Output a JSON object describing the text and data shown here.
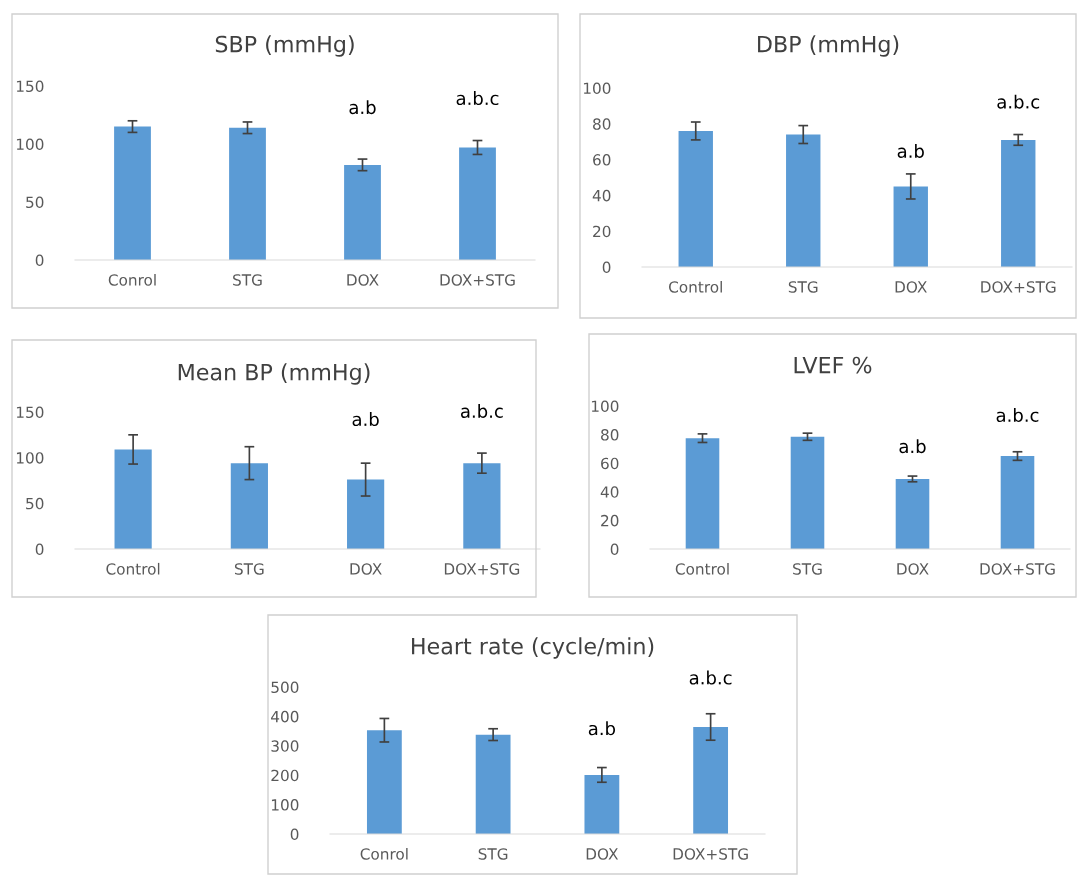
{
  "chart_data": [
    {
      "type": "bar",
      "title": "SBP (mmHg)",
      "categories": [
        "Conrol",
        "STG",
        "DOX",
        "DOX+STG"
      ],
      "values": [
        115,
        114,
        82,
        97
      ],
      "errors": [
        5,
        5,
        5,
        6
      ],
      "color": "#5b9bd5",
      "ylim": [
        0,
        150
      ],
      "yticks": [
        0,
        50,
        100,
        150
      ],
      "annotations": [
        {
          "text": "a.b",
          "x": "DOX",
          "y": 82
        },
        {
          "text": "a.b.c",
          "x": "DOX+STG",
          "y": 97
        }
      ]
    },
    {
      "type": "bar",
      "title": "DBP (mmHg)",
      "categories": [
        "Control",
        "STG",
        "DOX",
        "DOX+STG"
      ],
      "values": [
        76,
        74,
        45,
        71
      ],
      "errors": [
        5,
        5,
        7,
        3
      ],
      "color": "#5b9bd5",
      "ylim": [
        0,
        100
      ],
      "yticks": [
        0,
        20,
        40,
        60,
        80,
        100
      ],
      "annotations": [
        {
          "text": "a.b",
          "x": "DOX",
          "y": 45
        },
        {
          "text": "a.b.c",
          "x": "DOX+STG",
          "y": 71
        }
      ]
    },
    {
      "type": "bar",
      "title": "Mean BP (mmHg)",
      "categories": [
        "Control",
        "STG",
        "DOX",
        "DOX+STG"
      ],
      "values": [
        109,
        94,
        76,
        94
      ],
      "errors": [
        16,
        18,
        18,
        11
      ],
      "color": "#5b9bd5",
      "ylim": [
        0,
        150
      ],
      "yticks": [
        0,
        50,
        100,
        150
      ],
      "annotations": [
        {
          "text": "a.b",
          "x": "DOX",
          "y": 76
        },
        {
          "text": "a.b.c",
          "x": "DOX+STG",
          "y": 94
        }
      ]
    },
    {
      "type": "bar",
      "title": "LVEF %",
      "categories": [
        "Control",
        "STG",
        "DOX",
        "DOX+STG"
      ],
      "values": [
        77.5,
        78.5,
        49,
        65
      ],
      "errors": [
        3,
        2.5,
        2,
        3
      ],
      "color": "#5b9bd5",
      "ylim": [
        0,
        100
      ],
      "yticks": [
        0,
        20,
        40,
        60,
        80,
        100
      ],
      "annotations": [
        {
          "text": "a.b",
          "x": "DOX",
          "y": 49
        },
        {
          "text": "a.b.c",
          "x": "DOX+STG",
          "y": 65
        }
      ]
    },
    {
      "type": "bar",
      "title": "Heart rate (cycle/min)",
      "categories": [
        "Conrol",
        "STG",
        "DOX",
        "DOX+STG"
      ],
      "values": [
        353,
        338,
        201,
        364
      ],
      "errors": [
        40,
        20,
        25,
        45
      ],
      "color": "#5b9bd5",
      "ylim": [
        0,
        500
      ],
      "yticks": [
        0,
        100,
        200,
        300,
        400,
        500
      ],
      "annotations": [
        {
          "text": "a.b",
          "x": "DOX",
          "y": 201
        },
        {
          "text": "a.b.c",
          "x": "DOX+STG",
          "y": 364
        }
      ]
    }
  ]
}
